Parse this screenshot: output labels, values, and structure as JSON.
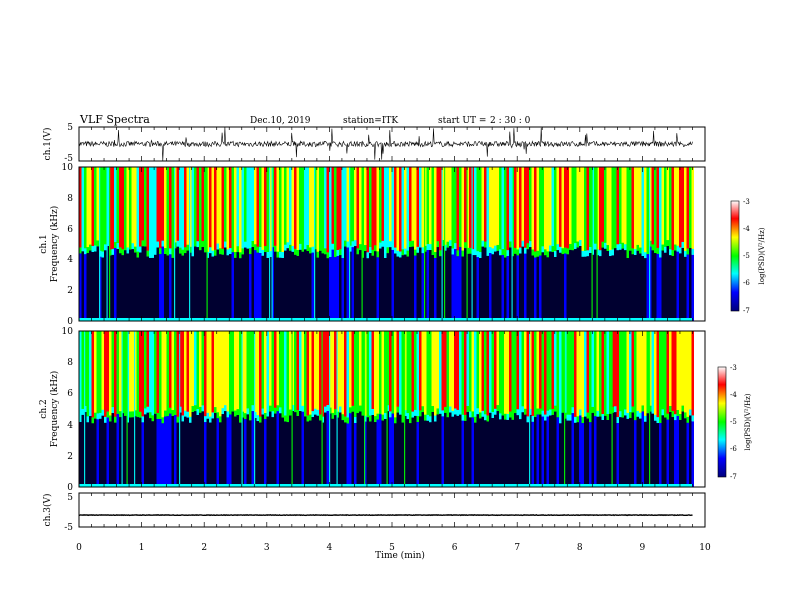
{
  "header": {
    "title": "VLF Spectra",
    "date": "Dec.10, 2019",
    "station": "station=ITK",
    "start_label": "start UT =",
    "start_time": "2 : 30 : 0"
  },
  "chart_data": [
    {
      "type": "line",
      "panel": "ch1-waveform",
      "ylabel": "ch.1(V)",
      "ylim": [
        -5,
        5
      ],
      "yticks": [
        "5",
        "-5"
      ],
      "xlim": [
        0,
        10
      ],
      "note_baseline": 0
    },
    {
      "type": "heatmap",
      "panel": "ch1-spectrogram",
      "ylabel_top": "ch.1",
      "ylabel": "Frequency (kHz)",
      "ylim": [
        0,
        10
      ],
      "yticks": [
        "0",
        "2",
        "4",
        "6",
        "8",
        "10"
      ],
      "xlim": [
        0,
        10
      ],
      "data_end_min": 9.8,
      "colorbar_ticks": [
        "-3",
        "-4",
        "-5",
        "-6",
        "-7"
      ],
      "colorbar_range": [
        -7,
        -3
      ],
      "colorbar_label": "log(PSD)(V²/Hz)"
    },
    {
      "type": "heatmap",
      "panel": "ch2-spectrogram",
      "ylabel_top": "ch.2",
      "ylabel": "Frequency (kHz)",
      "ylim": [
        0,
        10
      ],
      "yticks": [
        "0",
        "2",
        "4",
        "6",
        "8",
        "10"
      ],
      "xlim": [
        0,
        10
      ],
      "data_end_min": 9.8,
      "colorbar_ticks": [
        "-3",
        "-4",
        "-5",
        "-6",
        "-7"
      ],
      "colorbar_range": [
        -7,
        -3
      ],
      "colorbar_label": "log(PSD)(V²/Hz)"
    },
    {
      "type": "line",
      "panel": "ch3-waveform",
      "ylabel": "ch.3(V)",
      "ylim": [
        -5,
        5
      ],
      "yticks": [
        "5",
        "-5"
      ],
      "xlim": [
        0,
        10
      ],
      "note_baseline": -1.5
    }
  ],
  "xaxis": {
    "label": "Time (min)",
    "ticks": [
      "0",
      "1",
      "2",
      "3",
      "4",
      "5",
      "6",
      "7",
      "8",
      "9",
      "10"
    ]
  },
  "colors": {
    "colormap": [
      "#00007a",
      "#0000ff",
      "#00ffff",
      "#00ff00",
      "#ffff00",
      "#ff0000",
      "#ffffff"
    ]
  }
}
